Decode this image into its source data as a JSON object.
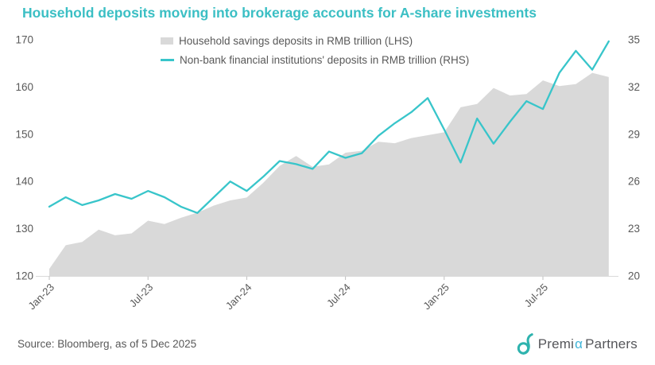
{
  "title": "Household deposits moving into brokerage accounts for A-share investments",
  "colors": {
    "title": "#3bbfc4",
    "line": "#38c5ca",
    "area": "#d9d9d9",
    "axis_text": "#595959",
    "axis_line": "#d9d9d9",
    "tick_mark": "#bfbfbf",
    "logo_mark": "#2eb3ae",
    "logo_alpha": "#3fb4d8",
    "logo_text": "#55565a"
  },
  "footer": {
    "source": "Source: Bloomberg, as of 5 Dec 2025"
  },
  "logo": {
    "pre": "Premi",
    "alpha": "α",
    "post": "Partners"
  },
  "chart_data": {
    "type": "area",
    "subtype": "dual-axis area + line",
    "x": [
      "Jan-23",
      "Feb-23",
      "Mar-23",
      "Apr-23",
      "May-23",
      "Jun-23",
      "Jul-23",
      "Aug-23",
      "Sep-23",
      "Oct-23",
      "Nov-23",
      "Dec-23",
      "Jan-24",
      "Feb-24",
      "Mar-24",
      "Apr-24",
      "May-24",
      "Jun-24",
      "Jul-24",
      "Aug-24",
      "Sep-24",
      "Oct-24",
      "Nov-24",
      "Dec-24",
      "Jan-25",
      "Feb-25",
      "Mar-25",
      "Apr-25",
      "May-25",
      "Jun-25",
      "Jul-25",
      "Aug-25",
      "Sep-25",
      "Oct-25",
      "Nov-25"
    ],
    "x_tick_labels": [
      "Jan-23",
      "Jul-23",
      "Jan-24",
      "Jul-24",
      "Jan-25",
      "Jul-25"
    ],
    "x_tick_indices": [
      0,
      6,
      12,
      18,
      24,
      30
    ],
    "series": [
      {
        "name": "Household savings deposits in RMB trillion (LHS)",
        "type": "area",
        "axis": "left",
        "color": "#d9d9d9",
        "values": [
          121.5,
          126.5,
          127.2,
          129.8,
          128.6,
          129.0,
          131.7,
          131.0,
          132.3,
          133.4,
          134.9,
          136.0,
          136.6,
          139.7,
          143.3,
          145.4,
          143.1,
          143.6,
          146.1,
          146.5,
          148.4,
          148.1,
          149.2,
          149.8,
          150.4,
          155.7,
          156.4,
          159.8,
          158.2,
          158.5,
          161.4,
          160.2,
          160.6,
          163.0,
          162.1
        ]
      },
      {
        "name": "Non-bank financial institutions' deposits in RMB trillion (RHS)",
        "type": "line",
        "axis": "right",
        "color": "#38c5ca",
        "values": [
          24.4,
          25.0,
          24.5,
          24.8,
          25.2,
          24.9,
          25.4,
          25.0,
          24.4,
          24.0,
          25.0,
          26.0,
          25.4,
          26.3,
          27.3,
          27.1,
          26.8,
          27.9,
          27.5,
          27.8,
          28.9,
          29.7,
          30.4,
          31.3,
          29.3,
          27.2,
          30.0,
          28.4,
          29.8,
          31.1,
          30.6,
          32.9,
          34.3,
          33.1,
          34.9
        ]
      }
    ],
    "left_axis": {
      "min": 120,
      "max": 170,
      "ticks": [
        120,
        130,
        140,
        150,
        160,
        170
      ]
    },
    "right_axis": {
      "min": 20,
      "max": 35,
      "ticks": [
        20,
        23,
        26,
        29,
        32,
        35
      ]
    },
    "grid": false,
    "legend_position": "top"
  }
}
